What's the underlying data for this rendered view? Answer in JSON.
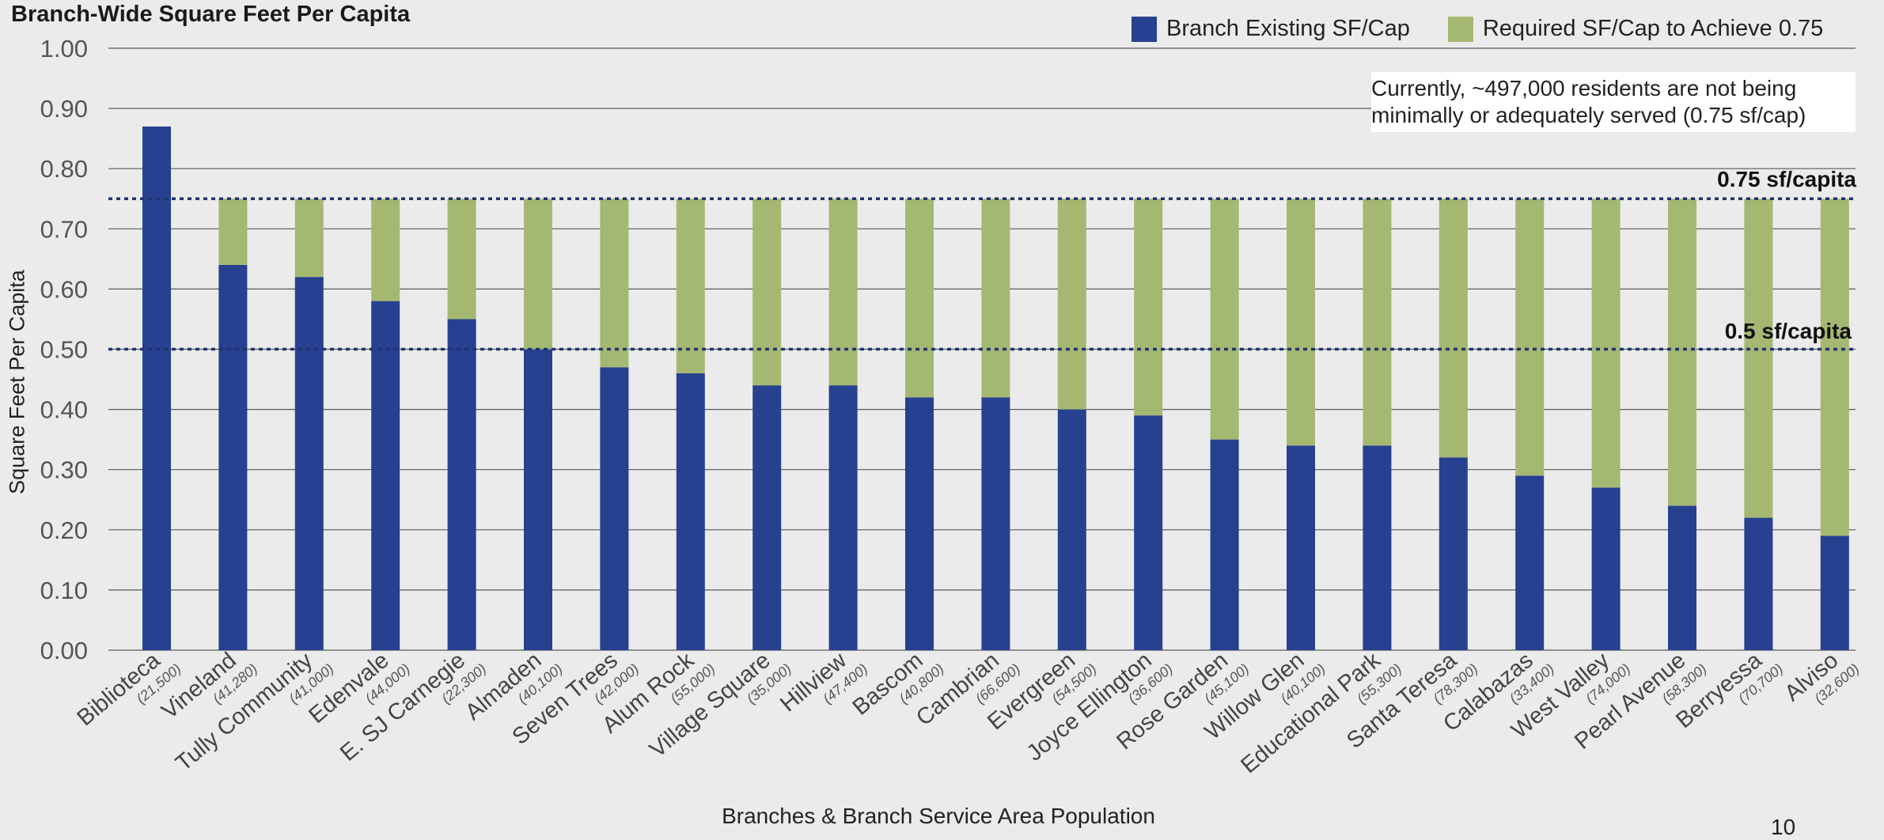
{
  "title": "Branch-Wide Square Feet Per Capita",
  "legend": {
    "existing": "Branch Existing SF/Cap",
    "required": "Required SF/Cap to Achieve 0.75"
  },
  "annotation": "Currently, ~497,000 residents are not being minimally or adequately served (0.75 sf/cap)",
  "reference_labels": {
    "upper": "0.75 sf/capita",
    "lower": "0.5 sf/capita"
  },
  "page_number": "10",
  "colors": {
    "existing": "#27408f",
    "required": "#a5b872",
    "reference_line": "#1f3570",
    "grid": "#5a5a5a",
    "background": "#ebebeb"
  },
  "chart_data": {
    "type": "bar",
    "stacked": true,
    "title": "Branch-Wide Square Feet Per Capita",
    "xlabel": "Branches & Branch Service Area Population",
    "ylabel": "Square Feet Per Capita",
    "ylim": [
      0,
      1.0
    ],
    "yticks": [
      "0.00",
      "0.10",
      "0.20",
      "0.30",
      "0.40",
      "0.50",
      "0.60",
      "0.70",
      "0.80",
      "0.90",
      "1.00"
    ],
    "grid": true,
    "legend_position": "top-right",
    "categories": [
      "Biblioteca",
      "Vineland",
      "Tully Community",
      "Edenvale",
      "E. SJ Carnegie",
      "Almaden",
      "Seven Trees",
      "Alum Rock",
      "Village Square",
      "Hillview",
      "Bascom",
      "Cambrian",
      "Evergreen",
      "Joyce Ellington",
      "Rose Garden",
      "Willow Glen",
      "Educational Park",
      "Santa Teresa",
      "Calabazas",
      "West Valley",
      "Pearl Avenue",
      "Berryessa",
      "Alviso"
    ],
    "populations": [
      "(21,500)",
      "(41,280)",
      "(41,000)",
      "(44,000)",
      "(22,300)",
      "(40,100)",
      "(42,000)",
      "(55,000)",
      "(35,000)",
      "(47,400)",
      "(40,800)",
      "(66,600)",
      "(54,500)",
      "(36,600)",
      "(45,100)",
      "(40,100)",
      "(55,300)",
      "(78,300)",
      "(33,400)",
      "(74,000)",
      "(58,300)",
      "(70,700)",
      "(32,600)"
    ],
    "series": [
      {
        "name": "Branch Existing SF/Cap",
        "values": [
          0.87,
          0.64,
          0.62,
          0.58,
          0.55,
          0.5,
          0.47,
          0.46,
          0.44,
          0.44,
          0.42,
          0.42,
          0.4,
          0.39,
          0.35,
          0.34,
          0.34,
          0.32,
          0.29,
          0.27,
          0.24,
          0.22,
          0.19
        ]
      },
      {
        "name": "Required SF/Cap to Achieve 0.75",
        "values": [
          0.0,
          0.11,
          0.13,
          0.17,
          0.2,
          0.25,
          0.28,
          0.29,
          0.31,
          0.31,
          0.33,
          0.33,
          0.35,
          0.36,
          0.4,
          0.41,
          0.41,
          0.43,
          0.46,
          0.48,
          0.51,
          0.53,
          0.56
        ]
      }
    ],
    "reference_lines": [
      0.75,
      0.5
    ]
  }
}
